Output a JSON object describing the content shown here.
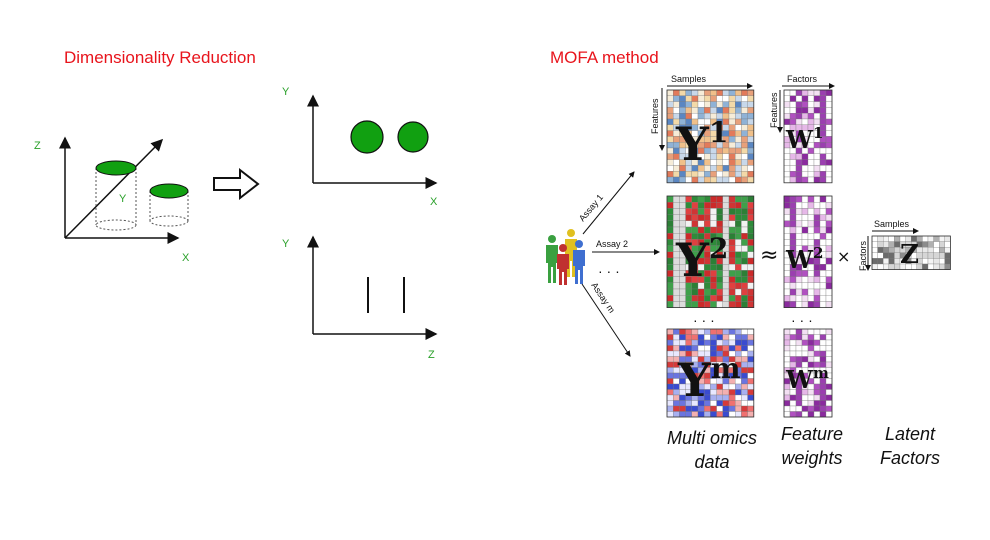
{
  "left_panel": {
    "title": "Dimensionality Reduction",
    "axis_z": "Z",
    "axis_y": "Y",
    "axis_x": "X",
    "plot1_y": "Y",
    "plot1_x": "X",
    "plot2_y": "Y",
    "plot2_z": "Z"
  },
  "right_panel": {
    "title": "MOFA method",
    "samples_label": "Samples",
    "features_label": "Features",
    "factors_label": "Factors",
    "assay1": "Assay 1",
    "assay2": "Assay 2",
    "assaym": "Assay m",
    "dots": "· · ·",
    "matrix_y1_base": "Y",
    "matrix_y1_sup": "1",
    "matrix_y2_base": "Y",
    "matrix_y2_sup": "2",
    "matrix_ym_base": "Y",
    "matrix_ym_sup": "m",
    "matrix_w1_base": "W",
    "matrix_w1_sup": "1",
    "matrix_w2_base": "W",
    "matrix_w2_sup": "2",
    "matrix_wm_base": "W",
    "matrix_wm_sup": "m",
    "matrix_z": "Z",
    "approx": "≈",
    "times": "×",
    "caption_data": "Multi omics data",
    "caption_weights": "Feature weights",
    "caption_factors": "Latent Factors"
  }
}
